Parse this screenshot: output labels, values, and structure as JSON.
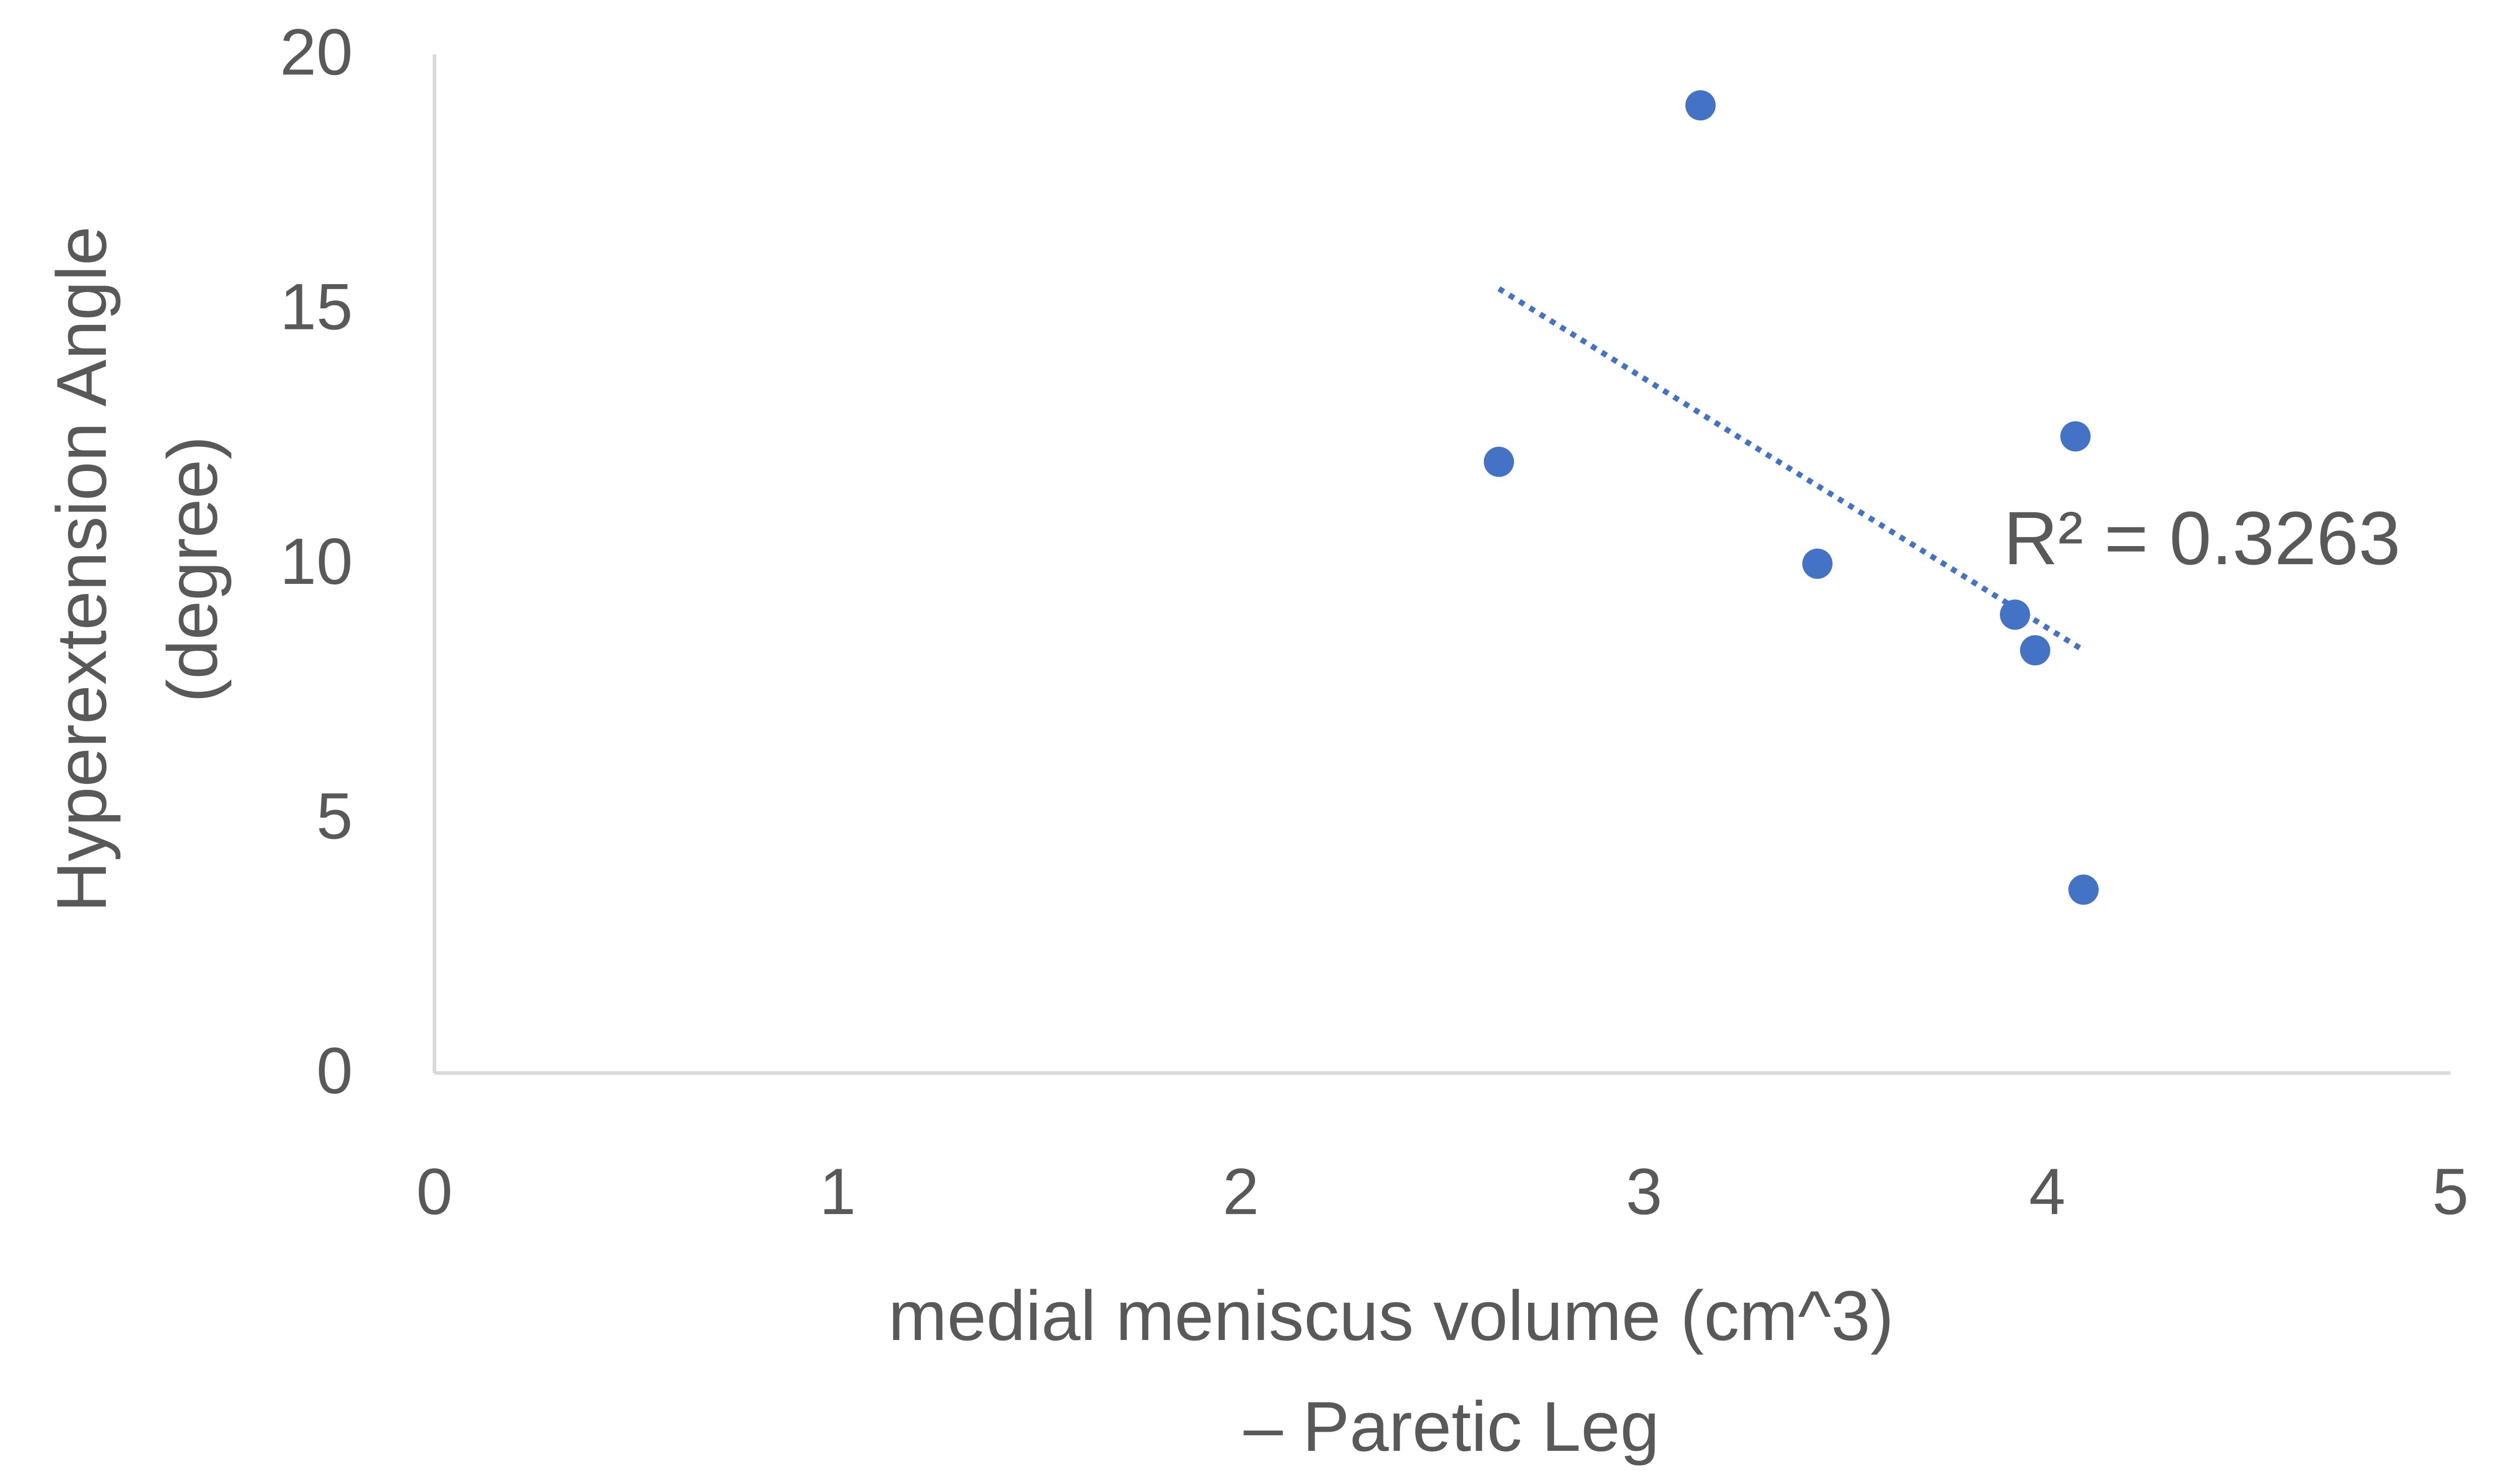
{
  "chart_data": {
    "type": "scatter",
    "title": "",
    "xlabel": [
      "medial  meniscus volume (cm^3)",
      "– Paretic Leg"
    ],
    "ylabel": [
      "Hyperextension Angle",
      "(degree)"
    ],
    "xlim": [
      0,
      5
    ],
    "ylim": [
      0,
      20
    ],
    "x_ticks": [
      0,
      1,
      2,
      3,
      4,
      5
    ],
    "y_ticks": [
      0,
      5,
      10,
      15,
      20
    ],
    "x_tick_labels": [
      "0",
      "1",
      "2",
      "3",
      "4",
      "5"
    ],
    "y_tick_labels": [
      "0",
      "5",
      "10",
      "15",
      "20"
    ],
    "grid": false,
    "legend": "none",
    "series": [
      {
        "points": [
          {
            "x": 2.64,
            "y": 12.0
          },
          {
            "x": 3.14,
            "y": 19.0
          },
          {
            "x": 3.43,
            "y": 10.0
          },
          {
            "x": 3.92,
            "y": 9.0
          },
          {
            "x": 3.97,
            "y": 8.3
          },
          {
            "x": 4.07,
            "y": 12.5
          },
          {
            "x": 4.09,
            "y": 3.6
          }
        ],
        "color": "#4472C4"
      }
    ],
    "trendline": {
      "type": "linear",
      "x_range": [
        2.64,
        4.09
      ],
      "y_start": 15.4,
      "y_end": 8.3,
      "color": "#4472C4",
      "style": "dotted",
      "annotation": "R² = 0.3263"
    }
  },
  "colors": {
    "axis": "#d9d9d9",
    "text": "#595959",
    "marker": "#4472C4"
  }
}
